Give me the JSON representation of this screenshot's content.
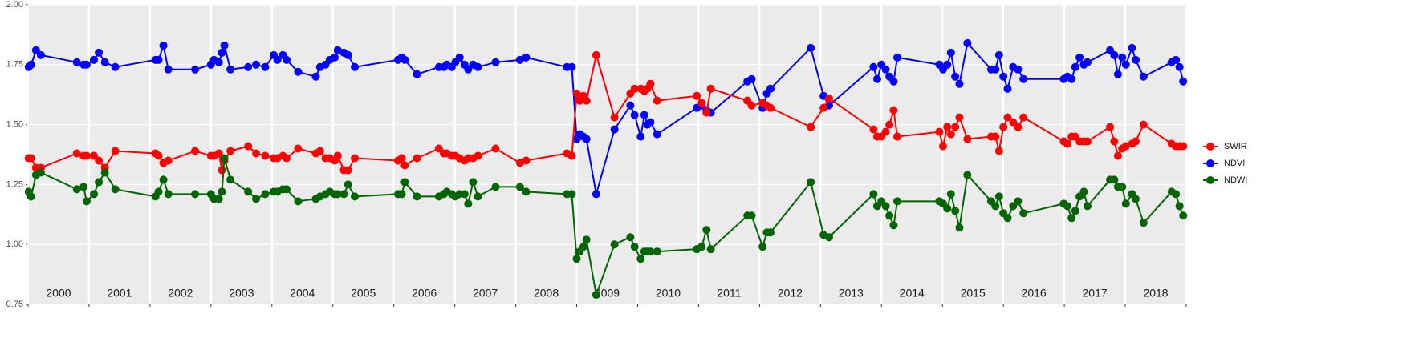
{
  "chart_data": {
    "type": "line",
    "x": [
      2000.01,
      2000.05,
      2000.13,
      2000.21,
      2000.8,
      2000.91,
      2000.96,
      2001.08,
      2001.16,
      2001.26,
      2001.43,
      2002.09,
      2002.14,
      2002.22,
      2002.3,
      2002.74,
      2003.0,
      2003.05,
      2003.13,
      2003.18,
      2003.22,
      2003.32,
      2003.61,
      2003.74,
      2003.89,
      2004.03,
      2004.09,
      2004.18,
      2004.24,
      2004.43,
      2004.72,
      2004.79,
      2004.88,
      2004.95,
      2005.03,
      2005.08,
      2005.18,
      2005.25,
      2005.36,
      2006.07,
      2006.13,
      2006.18,
      2006.38,
      2006.74,
      2006.82,
      2006.87,
      2006.95,
      2007.01,
      2007.08,
      2007.16,
      2007.22,
      2007.3,
      2007.38,
      2007.67,
      2008.07,
      2008.17,
      2008.84,
      2008.92,
      2009.0,
      2009.05,
      2009.11,
      2009.16,
      2009.32,
      2009.62,
      2009.88,
      2009.95,
      2010.05,
      2010.11,
      2010.16,
      2010.21,
      2010.32,
      2010.97,
      2011.05,
      2011.13,
      2011.2,
      2011.8,
      2011.87,
      2012.05,
      2012.12,
      2012.18,
      2012.84,
      2013.05,
      2013.14,
      2013.87,
      2013.93,
      2014.0,
      2014.07,
      2014.13,
      2014.2,
      2014.26,
      2014.95,
      2015.01,
      2015.08,
      2015.14,
      2015.21,
      2015.28,
      2015.41,
      2015.8,
      2015.87,
      2015.93,
      2016.0,
      2016.07,
      2016.16,
      2016.24,
      2016.33,
      2016.99,
      2017.05,
      2017.12,
      2017.18,
      2017.25,
      2017.32,
      2017.38,
      2017.75,
      2017.82,
      2017.88,
      2017.95,
      2018.01,
      2018.11,
      2018.17,
      2018.3,
      2018.76,
      2018.83,
      2018.89,
      2018.95
    ],
    "series": [
      {
        "name": "SWIR",
        "color": "#ff0000",
        "values": [
          1.36,
          1.36,
          1.32,
          1.32,
          1.38,
          1.37,
          1.37,
          1.37,
          1.35,
          1.32,
          1.39,
          1.38,
          1.37,
          1.34,
          1.35,
          1.39,
          1.37,
          1.37,
          1.38,
          1.31,
          1.35,
          1.39,
          1.41,
          1.38,
          1.37,
          1.36,
          1.36,
          1.37,
          1.36,
          1.4,
          1.38,
          1.39,
          1.36,
          1.36,
          1.35,
          1.37,
          1.31,
          1.31,
          1.36,
          1.35,
          1.36,
          1.33,
          1.36,
          1.4,
          1.38,
          1.38,
          1.37,
          1.37,
          1.36,
          1.35,
          1.36,
          1.36,
          1.37,
          1.4,
          1.34,
          1.35,
          1.38,
          1.37,
          1.63,
          1.6,
          1.62,
          1.6,
          1.79,
          1.53,
          1.63,
          1.65,
          1.65,
          1.64,
          1.65,
          1.67,
          1.6,
          1.62,
          1.59,
          1.55,
          1.65,
          1.6,
          1.58,
          1.59,
          1.58,
          1.57,
          1.49,
          1.57,
          1.61,
          1.48,
          1.45,
          1.45,
          1.47,
          1.5,
          1.56,
          1.45,
          1.47,
          1.41,
          1.49,
          1.46,
          1.49,
          1.53,
          1.44,
          1.45,
          1.45,
          1.39,
          1.49,
          1.53,
          1.51,
          1.49,
          1.53,
          1.43,
          1.42,
          1.45,
          1.45,
          1.43,
          1.43,
          1.43,
          1.49,
          1.43,
          1.37,
          1.4,
          1.41,
          1.42,
          1.43,
          1.5,
          1.42,
          1.41,
          1.41,
          1.41
        ]
      },
      {
        "name": "NDVI",
        "color": "#0000ff",
        "values": [
          1.74,
          1.75,
          1.81,
          1.79,
          1.76,
          1.75,
          1.75,
          1.77,
          1.8,
          1.76,
          1.74,
          1.77,
          1.77,
          1.83,
          1.73,
          1.73,
          1.75,
          1.77,
          1.76,
          1.8,
          1.83,
          1.73,
          1.74,
          1.75,
          1.74,
          1.79,
          1.77,
          1.79,
          1.77,
          1.72,
          1.7,
          1.74,
          1.75,
          1.77,
          1.78,
          1.81,
          1.8,
          1.79,
          1.74,
          1.77,
          1.78,
          1.77,
          1.71,
          1.74,
          1.74,
          1.75,
          1.74,
          1.76,
          1.78,
          1.75,
          1.73,
          1.75,
          1.74,
          1.76,
          1.77,
          1.78,
          1.74,
          1.74,
          1.44,
          1.46,
          1.45,
          1.44,
          1.21,
          1.48,
          1.58,
          1.54,
          1.45,
          1.54,
          1.5,
          1.51,
          1.46,
          1.57,
          1.58,
          1.56,
          1.55,
          1.68,
          1.69,
          1.57,
          1.63,
          1.65,
          1.82,
          1.62,
          1.58,
          1.74,
          1.69,
          1.75,
          1.73,
          1.7,
          1.68,
          1.78,
          1.75,
          1.73,
          1.75,
          1.8,
          1.7,
          1.67,
          1.84,
          1.73,
          1.73,
          1.79,
          1.7,
          1.65,
          1.74,
          1.73,
          1.69,
          1.69,
          1.7,
          1.69,
          1.74,
          1.78,
          1.75,
          1.76,
          1.81,
          1.79,
          1.71,
          1.78,
          1.75,
          1.82,
          1.77,
          1.7,
          1.76,
          1.77,
          1.74,
          1.68
        ]
      },
      {
        "name": "NDWI",
        "color": "#006400",
        "values": [
          1.22,
          1.2,
          1.29,
          1.3,
          1.23,
          1.24,
          1.18,
          1.21,
          1.26,
          1.3,
          1.23,
          1.2,
          1.22,
          1.27,
          1.21,
          1.21,
          1.21,
          1.19,
          1.19,
          1.22,
          1.36,
          1.27,
          1.22,
          1.19,
          1.21,
          1.22,
          1.22,
          1.23,
          1.23,
          1.18,
          1.19,
          1.2,
          1.21,
          1.22,
          1.21,
          1.21,
          1.21,
          1.25,
          1.2,
          1.21,
          1.21,
          1.26,
          1.2,
          1.2,
          1.21,
          1.22,
          1.21,
          1.2,
          1.21,
          1.21,
          1.17,
          1.26,
          1.2,
          1.24,
          1.24,
          1.22,
          1.21,
          1.21,
          0.94,
          0.97,
          0.99,
          1.02,
          0.79,
          1.0,
          1.03,
          0.99,
          0.94,
          0.97,
          0.97,
          0.97,
          0.97,
          0.98,
          0.99,
          1.06,
          0.98,
          1.12,
          1.12,
          0.99,
          1.05,
          1.05,
          1.26,
          1.04,
          1.03,
          1.21,
          1.16,
          1.18,
          1.16,
          1.12,
          1.08,
          1.18,
          1.18,
          1.17,
          1.15,
          1.21,
          1.14,
          1.07,
          1.29,
          1.18,
          1.16,
          1.2,
          1.13,
          1.11,
          1.16,
          1.18,
          1.13,
          1.17,
          1.16,
          1.11,
          1.14,
          1.2,
          1.22,
          1.16,
          1.27,
          1.27,
          1.24,
          1.24,
          1.17,
          1.21,
          1.19,
          1.09,
          1.22,
          1.21,
          1.16,
          1.12
        ]
      }
    ],
    "xlim": [
      2000,
      2019
    ],
    "xticks": [
      2000,
      2001,
      2002,
      2003,
      2004,
      2005,
      2006,
      2007,
      2008,
      2009,
      2010,
      2011,
      2012,
      2013,
      2014,
      2015,
      2016,
      2017,
      2018,
      2019
    ],
    "year_labels": [
      "2000",
      "2001",
      "2002",
      "2003",
      "2004",
      "2005",
      "2006",
      "2007",
      "2008",
      "2009",
      "2010",
      "2011",
      "2012",
      "2013",
      "2014",
      "2015",
      "2016",
      "2017",
      "2018"
    ],
    "ylim": [
      0.75,
      2.0
    ],
    "yticks": [
      {
        "value": 0.75,
        "label": "0.75"
      },
      {
        "value": 1.0,
        "label": "1.00"
      },
      {
        "value": 1.25,
        "label": "1.25"
      },
      {
        "value": 1.5,
        "label": "1.50"
      },
      {
        "value": 1.75,
        "label": "1.75"
      },
      {
        "value": 2.0,
        "label": "2.00"
      }
    ],
    "grid": true,
    "markers": true,
    "legend": "right"
  }
}
